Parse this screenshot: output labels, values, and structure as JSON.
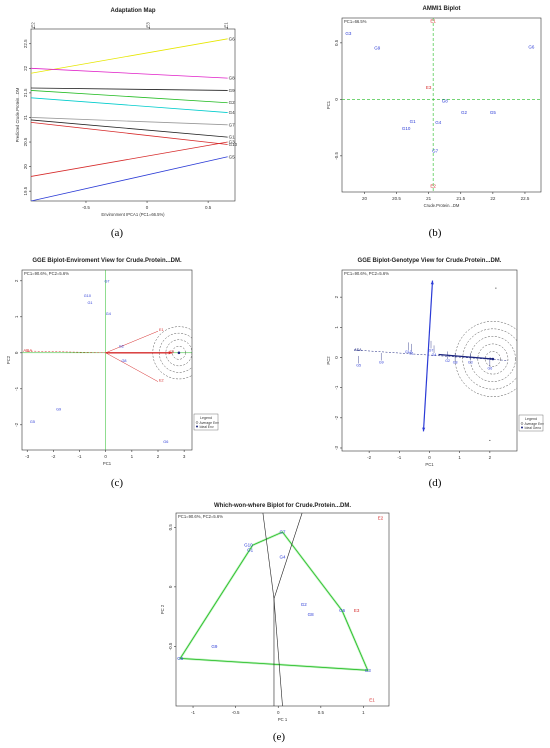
{
  "colors": {
    "genotype": "#2b3bd6",
    "environment": "#d62b2b",
    "axis_ref": "#22bb22",
    "frame": "#333333"
  },
  "chart_data": [
    {
      "id": "a",
      "type": "line",
      "title": "Adaptation Map",
      "caption": "(a)",
      "xlabel": "Environment IPCA1 (PC1=66.5%)",
      "ylabel": "Predicted Crude.Protein...DM",
      "xlim": [
        -0.95,
        0.72
      ],
      "ylim": [
        19.3,
        22.8
      ],
      "xticks": [
        -0.5,
        0.0,
        0.5
      ],
      "yticks": [
        19.5,
        20.0,
        20.5,
        21.0,
        21.5,
        22.0,
        22.5
      ],
      "top_axis_labels": [
        {
          "label": "E2",
          "x": -0.92
        },
        {
          "label": "E3",
          "x": 0.02
        },
        {
          "label": "E1",
          "x": 0.66
        }
      ],
      "series": [
        {
          "name": "G6",
          "color": "#e6e600",
          "x": [
            -0.95,
            0.66
          ],
          "y": [
            21.9,
            22.6
          ]
        },
        {
          "name": "G8",
          "color": "#e020c8",
          "x": [
            -0.95,
            0.66
          ],
          "y": [
            22.0,
            21.8
          ]
        },
        {
          "name": "G9",
          "color": "#222222",
          "x": [
            -0.95,
            0.66
          ],
          "y": [
            21.6,
            21.55
          ]
        },
        {
          "name": "G2",
          "color": "#22bb22",
          "x": [
            -0.95,
            0.66
          ],
          "y": [
            21.55,
            21.3
          ]
        },
        {
          "name": "G4",
          "color": "#00cccc",
          "x": [
            -0.95,
            0.66
          ],
          "y": [
            21.4,
            21.1
          ]
        },
        {
          "name": "G7",
          "color": "#999999",
          "x": [
            -0.95,
            0.66
          ],
          "y": [
            21.0,
            20.85
          ]
        },
        {
          "name": "G1",
          "color": "#222222",
          "x": [
            -0.95,
            0.66
          ],
          "y": [
            20.95,
            20.6
          ]
        },
        {
          "name": "G10",
          "color": "#d62b2b",
          "x": [
            -0.95,
            0.66
          ],
          "y": [
            20.9,
            20.45
          ]
        },
        {
          "name": "G3",
          "color": "#d62b2b",
          "x": [
            -0.95,
            0.66
          ],
          "y": [
            19.8,
            20.5
          ]
        },
        {
          "name": "G5",
          "color": "#2b3bd6",
          "x": [
            -0.95,
            0.66
          ],
          "y": [
            19.3,
            20.2
          ]
        }
      ]
    },
    {
      "id": "b",
      "type": "scatter",
      "title": "AMMI1 Biplot",
      "caption": "(b)",
      "subtitle": "PC1=66.5%",
      "xlabel": "Crude.Protein...DM",
      "ylabel": "PC1",
      "xlim": [
        19.65,
        22.75
      ],
      "ylim": [
        -0.82,
        0.72
      ],
      "xticks": [
        20.0,
        20.5,
        21.0,
        21.5,
        22.0,
        22.5
      ],
      "yticks": [
        -0.5,
        0.0,
        0.5
      ],
      "ref_x": 21.07,
      "ref_y": 0.0,
      "points": [
        {
          "label": "E1",
          "x": 21.07,
          "y": 0.68,
          "kind": "env"
        },
        {
          "label": "E3",
          "x": 21.0,
          "y": 0.09,
          "kind": "env"
        },
        {
          "label": "E2",
          "x": 21.07,
          "y": -0.78,
          "kind": "env"
        },
        {
          "label": "G3",
          "x": 19.75,
          "y": 0.57,
          "kind": "gen"
        },
        {
          "label": "G9",
          "x": 20.2,
          "y": 0.44,
          "kind": "gen"
        },
        {
          "label": "G6",
          "x": 22.6,
          "y": 0.45,
          "kind": "gen"
        },
        {
          "label": "G8",
          "x": 21.25,
          "y": -0.03,
          "kind": "gen"
        },
        {
          "label": "G2",
          "x": 21.55,
          "y": -0.13,
          "kind": "gen"
        },
        {
          "label": "G5",
          "x": 22.0,
          "y": -0.13,
          "kind": "gen"
        },
        {
          "label": "G4",
          "x": 21.15,
          "y": -0.22,
          "kind": "gen"
        },
        {
          "label": "G1",
          "x": 20.75,
          "y": -0.21,
          "kind": "gen"
        },
        {
          "label": "G10",
          "x": 20.65,
          "y": -0.27,
          "kind": "gen"
        },
        {
          "label": "G7",
          "x": 21.1,
          "y": -0.47,
          "kind": "gen"
        }
      ]
    },
    {
      "id": "c",
      "type": "scatter",
      "title": "GGE Biplot-Enviroment View for Crude.Protein...DM.",
      "caption": "(c)",
      "subtitle": "PC1=90.6%, PC2=5.6%",
      "xlabel": "PC1",
      "ylabel": "PC2",
      "xlim": [
        -3.2,
        3.3
      ],
      "ylim": [
        -2.7,
        2.3
      ],
      "xticks": [
        -3,
        -2,
        -1,
        0,
        1,
        2,
        3
      ],
      "yticks": [
        -2,
        -1,
        0,
        1,
        2
      ],
      "ideal": {
        "x": 2.8,
        "y": 0.0
      },
      "circle_radii": [
        0.25,
        0.5,
        0.75,
        1.0
      ],
      "aec_end": {
        "label": "AEA",
        "x": -3.0,
        "y": 0.05
      },
      "legend": {
        "title": "Legend",
        "items": [
          "Average Env",
          "Ideal Env"
        ],
        "placement": "bottom-right"
      },
      "env_points": [
        {
          "label": "E1",
          "x": 2.0,
          "y": 0.6
        },
        {
          "label": "E3",
          "x": 2.4,
          "y": 0.0
        },
        {
          "label": "E2",
          "x": 2.0,
          "y": -0.8
        }
      ],
      "gen_points": [
        {
          "label": "G7",
          "x": 0.05,
          "y": 1.95
        },
        {
          "label": "G10",
          "x": -0.7,
          "y": 1.55
        },
        {
          "label": "G1",
          "x": -0.6,
          "y": 1.35
        },
        {
          "label": "G4",
          "x": 0.1,
          "y": 1.05
        },
        {
          "label": "G2",
          "x": 0.6,
          "y": 0.15
        },
        {
          "label": "G8",
          "x": 0.7,
          "y": -0.25
        },
        {
          "label": "G9",
          "x": -1.8,
          "y": -1.6
        },
        {
          "label": "G5",
          "x": -2.8,
          "y": -1.95
        },
        {
          "label": "G6",
          "x": 2.3,
          "y": -2.5
        }
      ]
    },
    {
      "id": "d",
      "type": "scatter",
      "title": "GGE Biplot-Genotype View for Crude.Protein...DM.",
      "caption": "(d)",
      "subtitle": "PC1=90.6%, PC2=5.6%",
      "xlabel": "PC1",
      "ylabel": "PC2",
      "xlim": [
        -2.9,
        2.9
      ],
      "ylim": [
        -3.1,
        2.9
      ],
      "xticks": [
        -2,
        -1,
        0,
        1,
        2
      ],
      "yticks": [
        -3,
        -2,
        -1,
        0,
        1,
        2
      ],
      "ideal": {
        "x": 2.1,
        "y": -0.05
      },
      "circle_radii": [
        0.25,
        0.5,
        0.75,
        1.0,
        1.25
      ],
      "aec_end": {
        "label": "AEA",
        "x": -2.5,
        "y": 0.25
      },
      "vertical_arrow": {
        "from": -2.45,
        "to": 2.55,
        "x_top": 0.1,
        "x_bottom": -0.2
      },
      "legend": {
        "title": "Legend",
        "items": [
          "Average Env",
          "Ideal Geno"
        ],
        "placement": "bottom-right"
      },
      "gen_points": [
        {
          "label": "G5",
          "x": -2.35,
          "y": -0.2
        },
        {
          "label": "G9",
          "x": -1.6,
          "y": -0.1
        },
        {
          "label": "G10",
          "x": -0.7,
          "y": 0.25
        },
        {
          "label": "G1",
          "x": -0.6,
          "y": 0.2
        },
        {
          "label": "G7",
          "x": 0.05,
          "y": 0.3
        },
        {
          "label": "G4",
          "x": 0.15,
          "y": 0.15
        },
        {
          "label": "G2",
          "x": 0.6,
          "y": -0.05
        },
        {
          "label": "G8",
          "x": 0.85,
          "y": -0.1
        },
        {
          "label": "G3",
          "x": 1.35,
          "y": -0.1
        },
        {
          "label": "G6",
          "x": 2.0,
          "y": -0.3
        }
      ],
      "env_dots": [
        {
          "x": 2.2,
          "y": 2.3
        },
        {
          "x": 2.0,
          "y": -2.75
        }
      ]
    },
    {
      "id": "e",
      "type": "scatter",
      "title": "Which-won-where Biplot for Crude.Protein...DM.",
      "caption": "(e)",
      "subtitle": "PC1=90.6%, PC2=5.6%",
      "xlabel": "PC 1",
      "ylabel": "PC 2",
      "xlim": [
        -1.2,
        1.3
      ],
      "ylim": [
        -1.0,
        0.62
      ],
      "xticks": [
        -1.0,
        -0.5,
        0.0,
        0.5,
        1.0
      ],
      "yticks": [
        -0.5,
        0.0,
        0.5
      ],
      "hull": [
        {
          "x": 0.05,
          "y": 0.46
        },
        {
          "x": -0.3,
          "y": 0.35
        },
        {
          "x": -1.15,
          "y": -0.6
        },
        {
          "x": 1.05,
          "y": -0.7
        },
        {
          "x": 0.75,
          "y": -0.2
        }
      ],
      "rays": [
        {
          "x1": -0.05,
          "y1": -0.1,
          "x2": -0.18,
          "y2": 0.62
        },
        {
          "x1": -0.05,
          "y1": -0.1,
          "x2": 0.28,
          "y2": 0.62
        },
        {
          "x1": -0.05,
          "y1": -0.1,
          "x2": -0.05,
          "y2": -1.0
        },
        {
          "x1": -0.05,
          "y1": -0.1,
          "x2": 0.05,
          "y2": -1.0
        }
      ],
      "gen_points": [
        {
          "label": "G7",
          "x": 0.05,
          "y": 0.46
        },
        {
          "label": "G10",
          "x": -0.35,
          "y": 0.35
        },
        {
          "label": "G1",
          "x": -0.33,
          "y": 0.31
        },
        {
          "label": "G4",
          "x": 0.05,
          "y": 0.25
        },
        {
          "label": "G2",
          "x": 0.3,
          "y": -0.15
        },
        {
          "label": "G8",
          "x": 0.38,
          "y": -0.23
        },
        {
          "label": "G6",
          "x": 0.75,
          "y": -0.2
        },
        {
          "label": "G9",
          "x": -0.75,
          "y": -0.5
        },
        {
          "label": "G5",
          "x": -1.15,
          "y": -0.6
        },
        {
          "label": "G3",
          "x": 1.05,
          "y": -0.7
        }
      ],
      "env_points": [
        {
          "label": "E2",
          "x": 1.2,
          "y": 0.58
        },
        {
          "label": "E3",
          "x": 0.92,
          "y": -0.2
        },
        {
          "label": "E1",
          "x": 1.1,
          "y": -0.95
        }
      ]
    }
  ]
}
